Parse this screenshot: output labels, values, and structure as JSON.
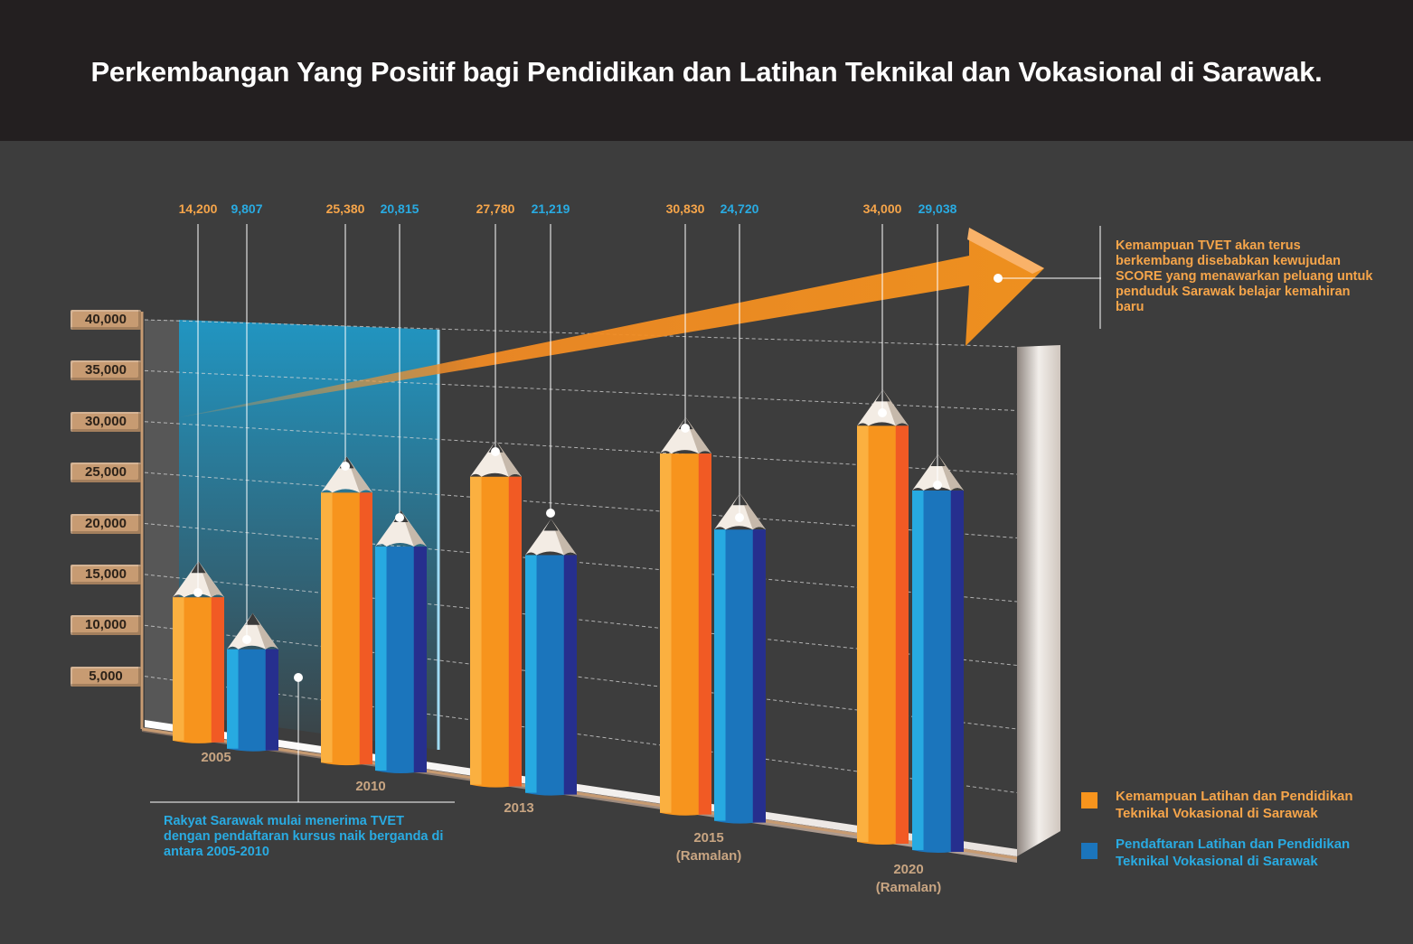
{
  "title": "Perkembangan Yang Positif bagi Pendidikan dan Latihan Teknikal dan Vokasional di Sarawak.",
  "colors": {
    "capacity": "#f7941d",
    "enrollment": "#1b75bc",
    "capacity_label": "#f6a54a",
    "enrollment_label": "#29abe2",
    "year_label": "#c8a582"
  },
  "annotations": {
    "arrow_note": "Kemampuan TVET akan terus berkembang disebabkan kewujudan SCORE yang menawarkan peluang untuk penduduk Sarawak belajar kemahiran baru",
    "tvet_note": "Rakyat Sarawak mulai menerima TVET dengan pendaftaran kursus naik berganda di antara 2005-2010"
  },
  "legend": [
    {
      "label": "Kemampuan Latihan dan Pendidikan Teknikal Vokasional di Sarawak",
      "color": "#f7941d"
    },
    {
      "label": "Pendaftaran Latihan dan Pendidikan Teknikal Vokasional di Sarawak",
      "color": "#1b75bc"
    }
  ],
  "chart_data": {
    "type": "bar",
    "title": "Perkembangan Yang Positif bagi Pendidikan dan Latihan Teknikal dan Vokasional di Sarawak.",
    "categories": [
      "2005",
      "2010",
      "2013",
      "2015\n(Ramalan)",
      "2020\n(Ramalan)"
    ],
    "series": [
      {
        "name": "Kemampuan Latihan dan Pendidikan Teknikal Vokasional di Sarawak",
        "values": [
          14200,
          25380,
          27780,
          30830,
          34000
        ]
      },
      {
        "name": "Pendaftaran Latihan dan Pendidikan Teknikal Vokasional di Sarawak",
        "values": [
          9807,
          20815,
          21219,
          24720,
          29038
        ]
      }
    ],
    "value_labels": [
      [
        "14,200",
        "25,380",
        "27,780",
        "30,830",
        "34,000"
      ],
      [
        "9,807",
        "20,815",
        "21,219",
        "24,720",
        "29,038"
      ]
    ],
    "ytick_labels": [
      "40,000",
      "35,000",
      "30,000",
      "25,000",
      "20,000",
      "15,000",
      "10,000",
      "5,000"
    ],
    "ylim": [
      0,
      40000
    ],
    "grid": true,
    "xlabel": "",
    "ylabel": ""
  }
}
